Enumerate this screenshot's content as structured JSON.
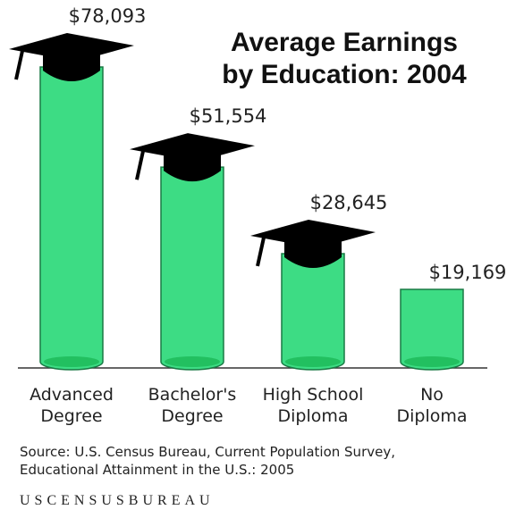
{
  "chart_data": {
    "type": "bar",
    "title": "Average Earnings\nby Education: 2004",
    "categories": [
      "Advanced\nDegree",
      "Bachelor's\nDegree",
      "High School\nDiploma",
      "No\nDiploma"
    ],
    "values": [
      78093,
      51554,
      28645,
      19169
    ],
    "value_labels": [
      "$78,093",
      "$51,554",
      "$28,645",
      "$19,169"
    ],
    "color": "#3ddc84",
    "source": "Source:  U.S. Census Bureau, Current Population Survey,\nEducational Attainment in the U.S.: 2005",
    "footer": "USCENSUSBUREAU"
  }
}
